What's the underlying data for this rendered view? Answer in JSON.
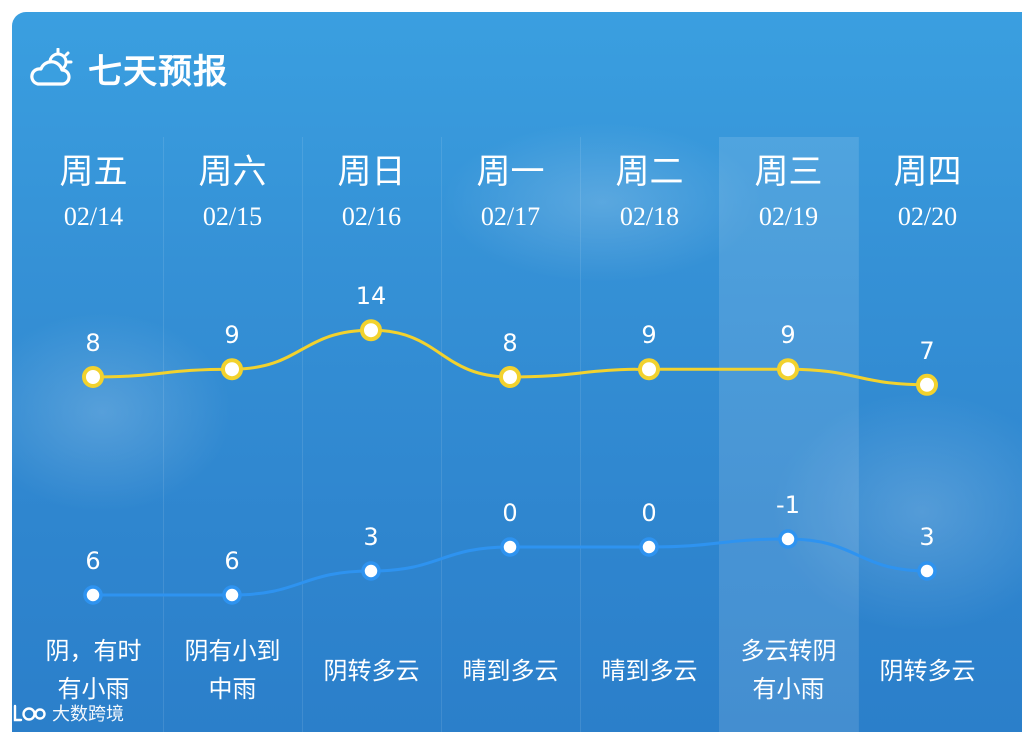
{
  "header": {
    "title": "七天预报",
    "icon": "partly-cloudy-icon"
  },
  "watermark": {
    "text": "大数跨境",
    "icon": "brand-logo-icon"
  },
  "colors": {
    "high": "#f2d22e",
    "low": "#2e93f0",
    "text": "#ffffff"
  },
  "chart_data": {
    "type": "line",
    "x": [
      "02/14",
      "02/15",
      "02/16",
      "02/17",
      "02/18",
      "02/19",
      "02/20"
    ],
    "weekdays": [
      "周五",
      "周六",
      "周日",
      "周一",
      "周二",
      "周三",
      "周四"
    ],
    "series": [
      {
        "values": [
          8,
          9,
          14,
          8,
          9,
          9,
          7
        ],
        "color": "#f2d22e"
      },
      {
        "values": [
          6,
          6,
          3,
          0,
          0,
          -1,
          3
        ],
        "color": "#2e93f0"
      }
    ],
    "highlight_index": 5,
    "grid": false,
    "legend": "none"
  },
  "days": [
    {
      "weekday": "周五",
      "date": "02/14",
      "desc": [
        "阴，有时",
        "有小雨"
      ]
    },
    {
      "weekday": "周六",
      "date": "02/15",
      "desc": [
        "阴有小到",
        "中雨"
      ]
    },
    {
      "weekday": "周日",
      "date": "02/16",
      "desc": [
        "阴转多云"
      ]
    },
    {
      "weekday": "周一",
      "date": "02/17",
      "desc": [
        "晴到多云"
      ]
    },
    {
      "weekday": "周二",
      "date": "02/18",
      "desc": [
        "晴到多云"
      ]
    },
    {
      "weekday": "周三",
      "date": "02/19",
      "desc": [
        "多云转阴",
        "有小雨"
      ]
    },
    {
      "weekday": "周四",
      "date": "02/20",
      "desc": [
        "阴转多云"
      ]
    }
  ]
}
